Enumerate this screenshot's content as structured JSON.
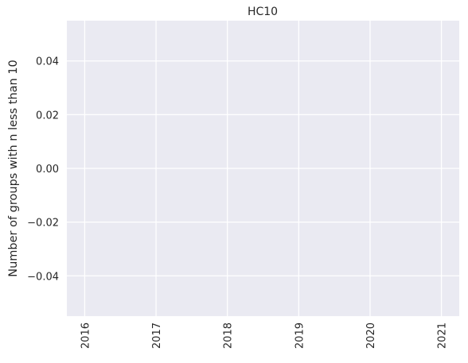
{
  "chart_data": {
    "type": "line",
    "title": "HC10",
    "xlabel": "",
    "ylabel": "Number of groups with n less than 10",
    "categories": [
      "2016",
      "2017",
      "2018",
      "2019",
      "2020",
      "2021"
    ],
    "series": [],
    "ylim": [
      -0.055,
      0.055
    ],
    "yticks": [
      "−0.04",
      "−0.02",
      "0.00",
      "0.02",
      "0.04"
    ],
    "ytick_values": [
      -0.04,
      -0.02,
      0.0,
      0.02,
      0.04
    ],
    "grid": true,
    "legend": "none",
    "colors": {
      "plot_background": "#eaeaf2",
      "grid": "#ffffff",
      "text": "#262626"
    }
  }
}
